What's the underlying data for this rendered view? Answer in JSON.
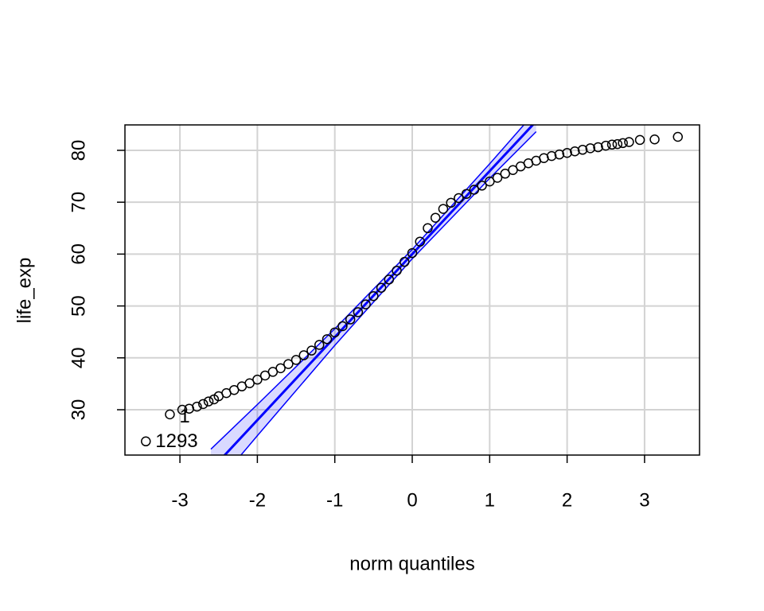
{
  "chart_data": {
    "type": "qqplot",
    "xlabel": "norm quantiles",
    "ylabel": "life_exp",
    "xlim": [
      -3.71,
      3.71
    ],
    "ylim": [
      21.26,
      84.9
    ],
    "xticks": [
      -3,
      -2,
      -1,
      0,
      1,
      2,
      3
    ],
    "yticks": [
      30,
      40,
      50,
      60,
      70,
      80
    ],
    "grid": true,
    "point_color": "#000000",
    "line_color": "#0000ff",
    "envelope_color": "#0000ff",
    "x": [
      -3.44,
      -3.13,
      -2.97,
      -2.88,
      -2.78,
      -2.7,
      -2.63,
      -2.56,
      -2.5,
      -2.4,
      -2.3,
      -2.2,
      -2.1,
      -2.0,
      -1.9,
      -1.8,
      -1.7,
      -1.6,
      -1.5,
      -1.4,
      -1.3,
      -1.2,
      -1.1,
      -1.0,
      -0.9,
      -0.8,
      -0.7,
      -0.6,
      -0.5,
      -0.4,
      -0.3,
      -0.2,
      -0.1,
      0,
      0.1,
      0.2,
      0.3,
      0.4,
      0.5,
      0.6,
      0.7,
      0.8,
      0.9,
      1.0,
      1.1,
      1.2,
      1.3,
      1.4,
      1.5,
      1.6,
      1.7,
      1.8,
      1.9,
      2.0,
      2.1,
      2.2,
      2.3,
      2.4,
      2.5,
      2.58,
      2.65,
      2.72,
      2.8,
      2.94,
      3.13,
      3.43
    ],
    "values": [
      23.9,
      29.1,
      30.0,
      30.2,
      30.6,
      31.1,
      31.6,
      32.0,
      32.6,
      33.2,
      33.8,
      34.5,
      35.1,
      35.8,
      36.6,
      37.3,
      38.0,
      38.8,
      39.6,
      40.5,
      41.4,
      42.5,
      43.6,
      44.9,
      46.1,
      47.4,
      48.8,
      50.3,
      51.9,
      53.5,
      55.1,
      56.8,
      58.5,
      60.2,
      62.4,
      65.0,
      67.0,
      68.7,
      69.9,
      70.8,
      71.6,
      72.4,
      73.2,
      74.0,
      74.7,
      75.5,
      76.2,
      76.9,
      77.5,
      78.0,
      78.5,
      78.9,
      79.2,
      79.5,
      79.8,
      80.1,
      80.4,
      80.6,
      80.9,
      81.1,
      81.2,
      81.4,
      81.6,
      82.0,
      82.1,
      82.6
    ],
    "point_labels": [
      "1293",
      "1",
      null,
      null,
      null,
      null,
      null,
      null,
      null,
      null,
      null,
      null,
      null,
      null,
      null,
      null,
      null,
      null,
      null,
      null,
      null,
      null,
      null,
      null,
      null,
      null,
      null,
      null,
      null,
      null,
      null,
      null,
      null,
      null,
      null,
      null,
      null,
      null,
      null,
      null,
      null,
      null,
      null,
      null,
      null,
      null,
      null,
      null,
      null,
      null,
      null,
      null,
      null,
      null,
      null,
      null,
      null,
      null,
      null,
      null,
      null,
      null,
      null,
      null,
      null,
      null
    ],
    "reference_line": {
      "intercept": 60,
      "slope": 16
    },
    "envelope": {
      "x": [
        -2.6,
        -2,
        -1,
        0,
        1,
        1.6
      ],
      "lower": [
        14.4,
        25,
        42.4,
        59.1,
        74.6,
        83.6
      ],
      "upper": [
        22.4,
        31,
        45.6,
        60.9,
        77.4,
        87.6
      ]
    }
  }
}
